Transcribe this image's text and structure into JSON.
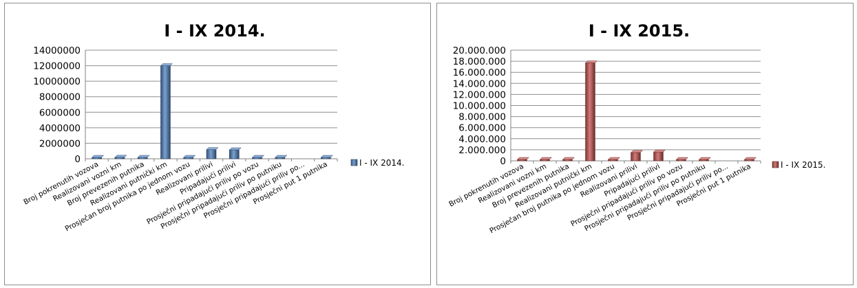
{
  "chart_data": [
    {
      "type": "bar",
      "title": "I - IX 2014.",
      "categories": [
        "Broj pokrenutih vozova",
        "Realizovani vozni km",
        "Broj prevezenih putnika",
        "Realizovani putnički km",
        "Prosječan broj putnika po jednom vozu",
        "Realizovani prilivi",
        "Pripadajući prilivi",
        "Prosječni pripadajući priliv po vozu",
        "Prosječni pripadajući priliv po putniku",
        "Prosječni pripadajući priliv po...",
        "Prosječni put 1 putnika"
      ],
      "series": [
        {
          "name": "I - IX 2014.",
          "values": [
            25000,
            190000,
            95000,
            12000000,
            25000,
            1180000,
            1150000,
            20000,
            2000,
            0,
            40000
          ],
          "color": "#4f81bd"
        }
      ],
      "ylim": [
        0,
        14000000
      ],
      "yticks": [
        0,
        2000000,
        4000000,
        6000000,
        8000000,
        10000000,
        12000000,
        14000000
      ],
      "yticklabels": [
        "0",
        "2000000",
        "4000000",
        "6000000",
        "8000000",
        "10000000",
        "12000000",
        "14000000"
      ],
      "grid": true,
      "legend": "right"
    },
    {
      "type": "bar",
      "title": "I - IX 2015.",
      "categories": [
        "Broj pokrenutih vozova",
        "Realizovani vozni km",
        "Broj prevezenih putnika",
        "Realizovani putnički km",
        "Prosječan broj putnika po jednom vozu",
        "Realizovani prilivi",
        "Pripadajući prilivi",
        "Prosječni pripadajući priliv po vozu",
        "Prosječni pripadajući priliv po putniku",
        "Prosječni pripadajući priliv po...",
        "Prosječni put 1 putnika"
      ],
      "series": [
        {
          "name": "I - IX 2015.",
          "values": [
            30000,
            250000,
            130000,
            17700000,
            30000,
            1500000,
            1600000,
            25000,
            2000,
            0,
            50000
          ],
          "color": "#c0504d"
        }
      ],
      "ylim": [
        0,
        20000000
      ],
      "yticks": [
        0,
        2000000,
        4000000,
        6000000,
        8000000,
        10000000,
        12000000,
        14000000,
        16000000,
        18000000,
        20000000
      ],
      "yticklabels": [
        "0",
        "2.000.000",
        "4.000.000",
        "6.000.000",
        "8.000.000",
        "10.000.000",
        "12.000.000",
        "14.000.000",
        "16.000.000",
        "18.000.000",
        "20.000.000"
      ],
      "grid": true,
      "legend": "right"
    }
  ]
}
